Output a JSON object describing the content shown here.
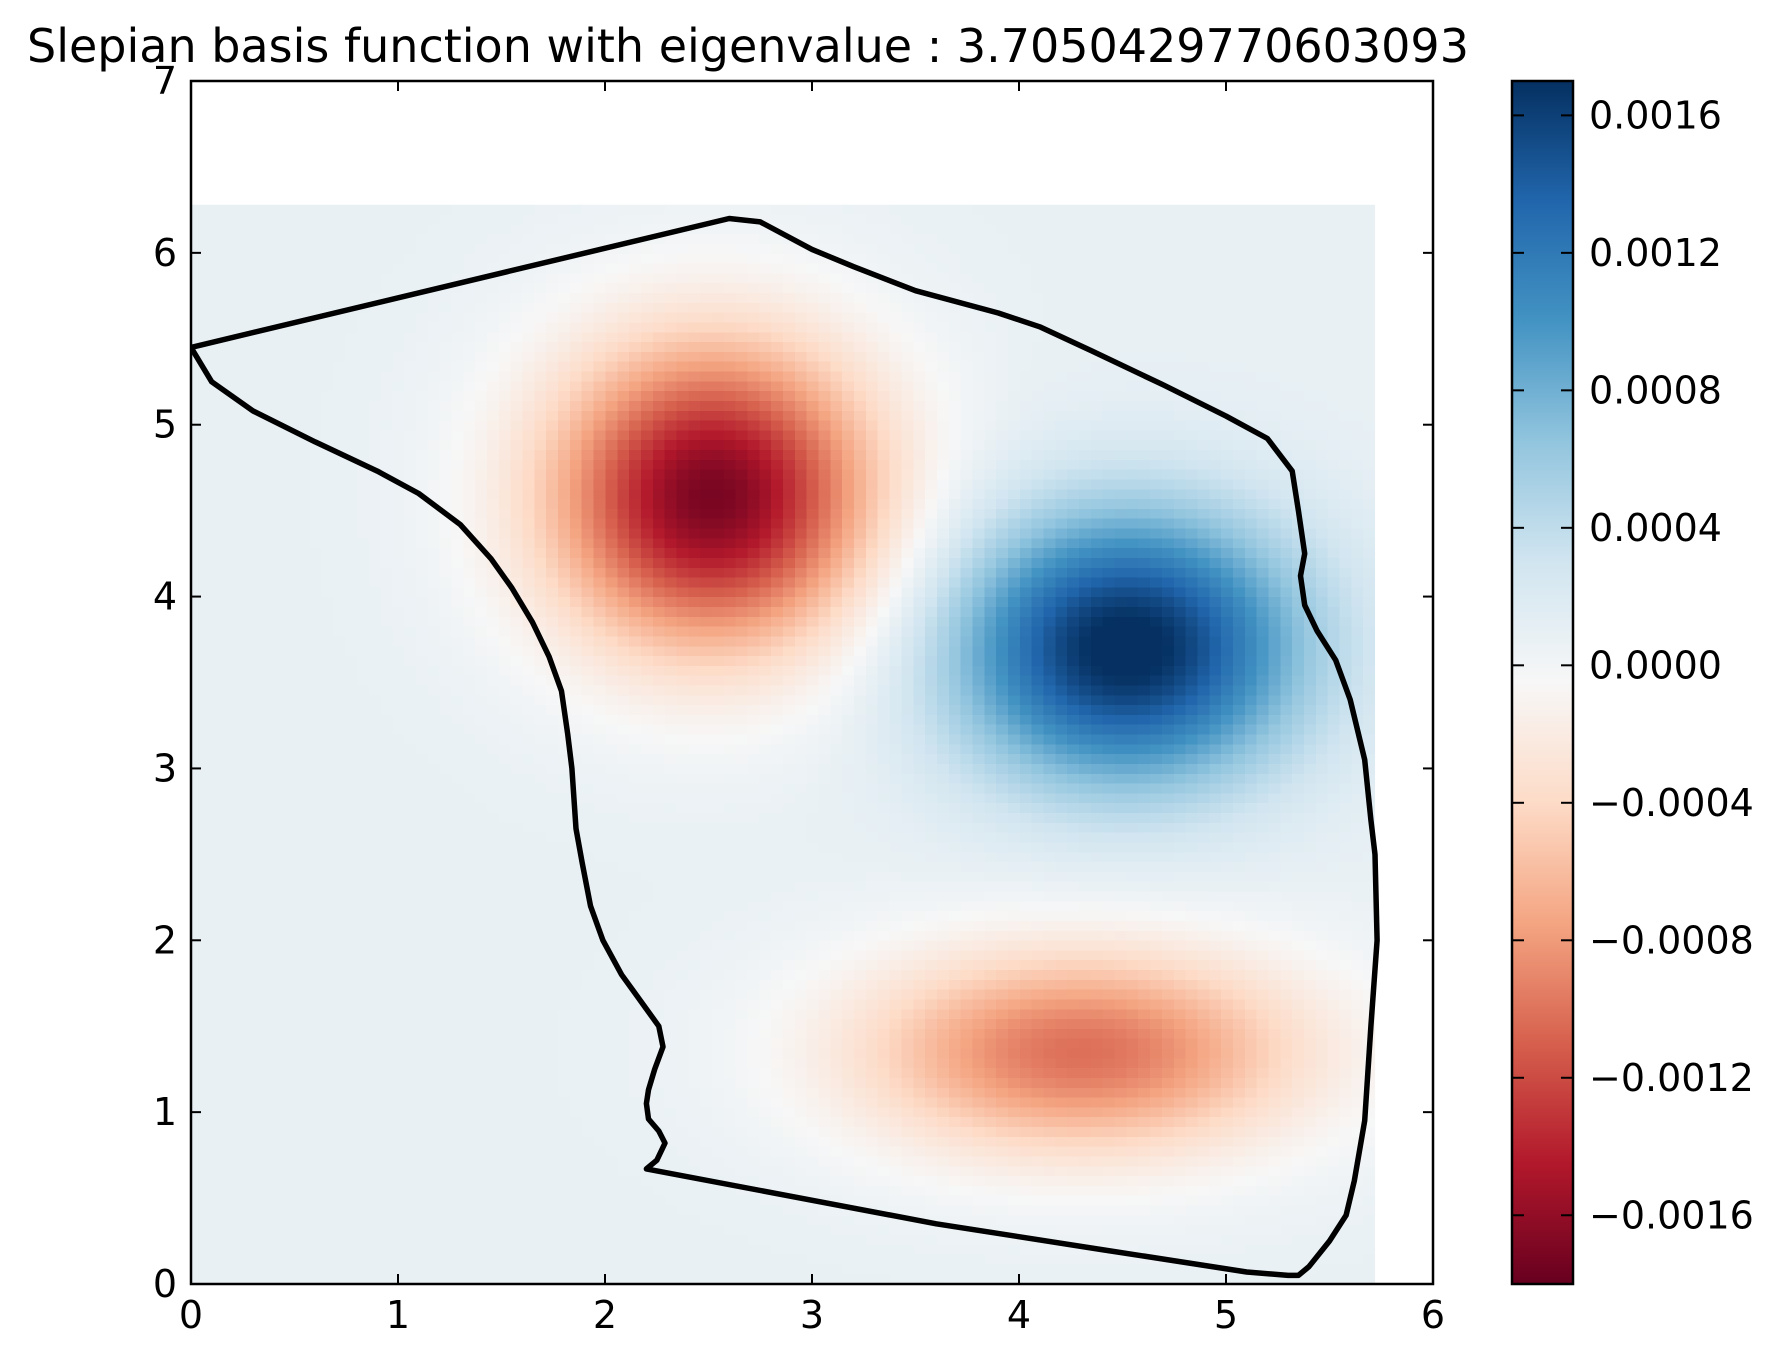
{
  "chart_data": {
    "type": "heatmap",
    "title": "Slepian basis function with eigenvalue : 3.7050429770603093",
    "xlabel": "",
    "ylabel": "",
    "xlim": [
      0,
      6
    ],
    "ylim": [
      0,
      7
    ],
    "grid": false,
    "field_extent": {
      "x": [
        0,
        5.72
      ],
      "y": [
        0,
        6.28
      ]
    },
    "x_ticks": [
      "0",
      "1",
      "2",
      "3",
      "4",
      "5",
      "6"
    ],
    "y_ticks": [
      "0",
      "1",
      "2",
      "3",
      "4",
      "5",
      "6",
      "7"
    ],
    "colormap": "RdBu",
    "color_range": [
      -0.0018,
      0.0017
    ],
    "colorbar_ticks": [
      "−0.0016",
      "−0.0012",
      "−0.0008",
      "−0.0004",
      "0.0000",
      "0.0004",
      "0.0008",
      "0.0012",
      "0.0016"
    ],
    "colorbar_tick_values": [
      -0.0016,
      -0.0012,
      -0.0008,
      -0.0004,
      0.0,
      0.0004,
      0.0008,
      0.0012,
      0.0016
    ],
    "colorbar_placement": "right",
    "field_components": [
      {
        "sign": "negative",
        "center": [
          2.52,
          4.58
        ],
        "amplitude": -0.0018,
        "spread": [
          0.55,
          0.62
        ]
      },
      {
        "sign": "positive",
        "center": [
          4.52,
          3.7
        ],
        "amplitude": 0.0017,
        "spread": [
          0.58,
          0.55
        ]
      },
      {
        "sign": "negative",
        "center": [
          4.3,
          1.35
        ],
        "amplitude": -0.0011,
        "spread": [
          0.75,
          0.42
        ]
      }
    ],
    "region_boundary": [
      [
        0,
        5.45
      ],
      [
        2.6,
        6.2
      ],
      [
        2.75,
        6.18
      ],
      [
        3.0,
        6.02
      ],
      [
        3.2,
        5.92
      ],
      [
        3.5,
        5.78
      ],
      [
        3.9,
        5.65
      ],
      [
        4.1,
        5.57
      ],
      [
        4.35,
        5.43
      ],
      [
        4.7,
        5.23
      ],
      [
        5.0,
        5.05
      ],
      [
        5.2,
        4.92
      ],
      [
        5.32,
        4.73
      ],
      [
        5.35,
        4.5
      ],
      [
        5.38,
        4.25
      ],
      [
        5.36,
        4.12
      ],
      [
        5.38,
        3.95
      ],
      [
        5.44,
        3.8
      ],
      [
        5.53,
        3.63
      ],
      [
        5.6,
        3.4
      ],
      [
        5.67,
        3.05
      ],
      [
        5.7,
        2.7
      ],
      [
        5.72,
        2.5
      ],
      [
        5.73,
        2.0
      ],
      [
        5.7,
        1.5
      ],
      [
        5.67,
        0.95
      ],
      [
        5.62,
        0.6
      ],
      [
        5.58,
        0.4
      ],
      [
        5.5,
        0.25
      ],
      [
        5.4,
        0.1
      ],
      [
        5.35,
        0.05
      ],
      [
        5.3,
        0.05
      ],
      [
        5.1,
        0.07
      ],
      [
        4.4,
        0.2
      ],
      [
        3.6,
        0.35
      ],
      [
        2.2,
        0.67
      ],
      [
        2.25,
        0.72
      ],
      [
        2.29,
        0.82
      ],
      [
        2.26,
        0.89
      ],
      [
        2.21,
        0.96
      ],
      [
        2.2,
        1.05
      ],
      [
        2.21,
        1.13
      ],
      [
        2.24,
        1.25
      ],
      [
        2.28,
        1.38
      ],
      [
        2.26,
        1.5
      ],
      [
        2.2,
        1.6
      ],
      [
        2.08,
        1.8
      ],
      [
        1.99,
        2.0
      ],
      [
        1.93,
        2.2
      ],
      [
        1.89,
        2.45
      ],
      [
        1.86,
        2.65
      ],
      [
        1.84,
        3.0
      ],
      [
        1.82,
        3.2
      ],
      [
        1.79,
        3.45
      ],
      [
        1.73,
        3.65
      ],
      [
        1.65,
        3.85
      ],
      [
        1.55,
        4.05
      ],
      [
        1.45,
        4.22
      ],
      [
        1.3,
        4.42
      ],
      [
        1.1,
        4.6
      ],
      [
        0.9,
        4.73
      ],
      [
        0.6,
        4.9
      ],
      [
        0.3,
        5.08
      ],
      [
        0.1,
        5.25
      ],
      [
        0,
        5.45
      ]
    ]
  }
}
